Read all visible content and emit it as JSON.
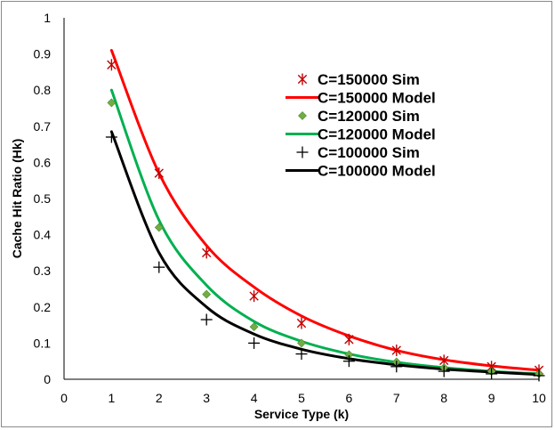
{
  "chart_data": {
    "type": "line",
    "title": "",
    "xlabel": "Service Type (k)",
    "ylabel": "Cache Hit Ratio (Hk)",
    "xlim": [
      0,
      10
    ],
    "ylim": [
      0,
      1
    ],
    "x_ticks": [
      "0",
      "1",
      "2",
      "3",
      "4",
      "5",
      "6",
      "7",
      "8",
      "9",
      "10"
    ],
    "y_ticks": [
      "0",
      "0.1",
      "0.2",
      "0.3",
      "0.4",
      "0.5",
      "0.6",
      "0.7",
      "0.8",
      "0.9",
      "1"
    ],
    "grid": false,
    "legend_position": "right",
    "x": [
      1,
      2,
      3,
      4,
      5,
      6,
      7,
      8,
      9,
      10
    ],
    "series": [
      {
        "name": "C=150000 Sim",
        "kind": "markers",
        "marker": "asterisk",
        "color": "#c00000",
        "values": [
          0.87,
          0.57,
          0.35,
          0.23,
          0.155,
          0.11,
          0.08,
          0.052,
          0.035,
          0.025
        ]
      },
      {
        "name": "C=150000 Model",
        "kind": "line",
        "color": "#ff0000",
        "values": [
          0.91,
          0.57,
          0.37,
          0.255,
          0.175,
          0.12,
          0.08,
          0.054,
          0.037,
          0.025
        ]
      },
      {
        "name": "C=120000 Sim",
        "kind": "markers",
        "marker": "diamond",
        "color": "#70ad47",
        "values": [
          0.765,
          0.42,
          0.235,
          0.145,
          0.1,
          0.068,
          0.048,
          0.032,
          0.022,
          0.015
        ]
      },
      {
        "name": "C=120000 Model",
        "kind": "line",
        "color": "#00b050",
        "values": [
          0.8,
          0.44,
          0.26,
          0.16,
          0.105,
          0.07,
          0.047,
          0.032,
          0.022,
          0.015
        ]
      },
      {
        "name": "C=100000 Sim",
        "kind": "markers",
        "marker": "plus",
        "color": "#000000",
        "values": [
          0.67,
          0.31,
          0.165,
          0.1,
          0.07,
          0.05,
          0.035,
          0.022,
          0.015,
          0.01
        ]
      },
      {
        "name": "C=100000 Model",
        "kind": "line",
        "color": "#000000",
        "values": [
          0.685,
          0.35,
          0.2,
          0.125,
          0.083,
          0.057,
          0.04,
          0.028,
          0.02,
          0.013
        ]
      }
    ]
  }
}
